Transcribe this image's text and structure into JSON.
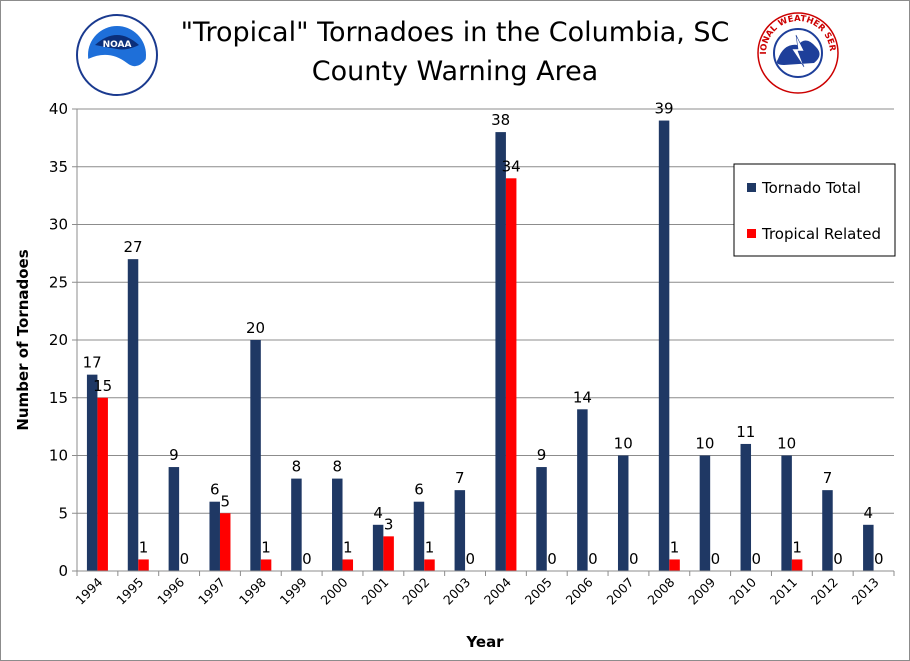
{
  "chart_data": {
    "type": "bar",
    "title_line1": "\"Tropical\" Tornadoes in the Columbia, SC",
    "title_line2": "County Warning Area",
    "xlabel": "Year",
    "ylabel": "Number of Tornadoes",
    "ylim": [
      0,
      40
    ],
    "yticks": [
      "0",
      "5",
      "10",
      "15",
      "20",
      "25",
      "30",
      "35",
      "40"
    ],
    "grid": true,
    "legend_position": "top-right",
    "categories": [
      "1994",
      "1995",
      "1996",
      "1997",
      "1998",
      "1999",
      "2000",
      "2001",
      "2002",
      "2003",
      "2004",
      "2005",
      "2006",
      "2007",
      "2008",
      "2009",
      "2010",
      "2011",
      "2012",
      "2013"
    ],
    "series": [
      {
        "name": "Tornado Total",
        "color": "#1f3864",
        "values": [
          17,
          27,
          9,
          6,
          20,
          8,
          8,
          4,
          6,
          7,
          38,
          9,
          14,
          10,
          39,
          10,
          11,
          10,
          7,
          4
        ]
      },
      {
        "name": "Tropical Related",
        "color": "#ff0000",
        "values": [
          15,
          1,
          0,
          5,
          1,
          0,
          1,
          3,
          1,
          0,
          34,
          0,
          0,
          0,
          1,
          0,
          0,
          1,
          0,
          0
        ]
      }
    ]
  },
  "logos": {
    "left_icon": "noaa-logo",
    "left_text": "NOAA",
    "right_icon": "nws-logo",
    "right_text": "NATIONAL WEATHER SERVICE"
  }
}
